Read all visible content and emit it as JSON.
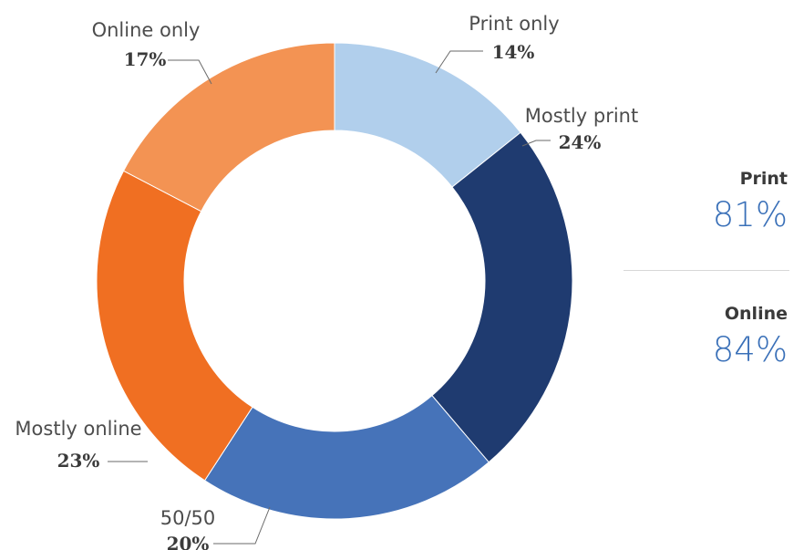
{
  "chart_data": {
    "type": "pie",
    "title": "",
    "slices": [
      {
        "label": "Print only",
        "value": 14,
        "display": "14%",
        "color": "#b1cfec"
      },
      {
        "label": "Mostly print",
        "value": 24,
        "display": "24%",
        "color": "#1f3b70"
      },
      {
        "label": "50/50",
        "value": 20,
        "display": "20%",
        "color": "#4673b9"
      },
      {
        "label": "Mostly online",
        "value": 23,
        "display": "23%",
        "color": "#f06f22"
      },
      {
        "label": "Online only",
        "value": 17,
        "display": "17%",
        "color": "#f39353"
      }
    ],
    "donut": true,
    "legend": "none"
  },
  "summary": {
    "print": {
      "label": "Print",
      "value": "81%"
    },
    "online": {
      "label": "Online",
      "value": "84%"
    }
  },
  "colors": {
    "accent_text": "#3a70b8",
    "label_text": "#4d4d4d"
  }
}
